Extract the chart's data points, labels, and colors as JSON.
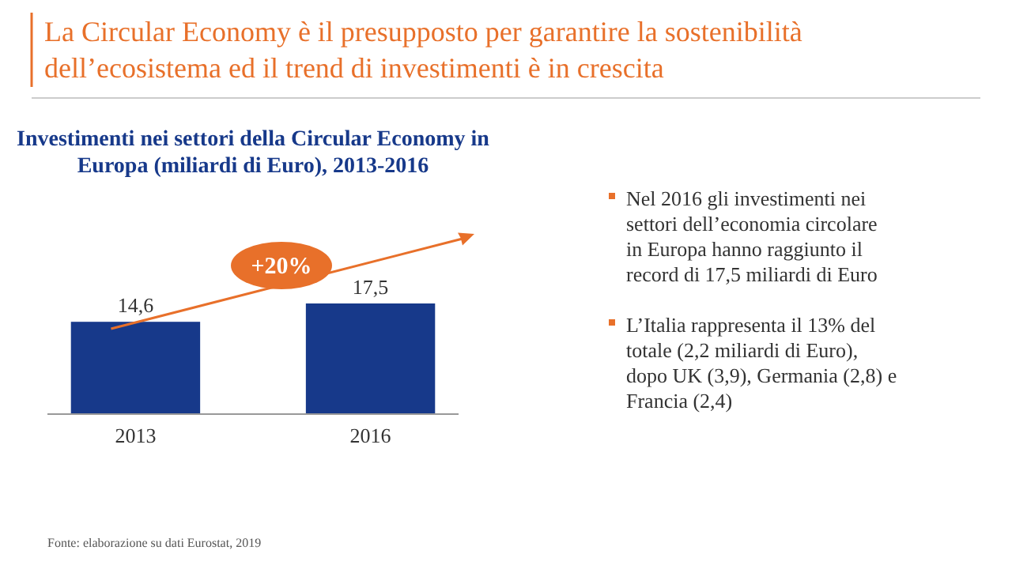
{
  "chart_data": {
    "type": "bar",
    "title": "La Circular Economy è il presupposto per garantire la sostenibilità dell’ecosistema ed il trend di investimenti è in crescita",
    "subtitle": "Investimenti nei settori della Circular Economy in Europa (miliardi di Euro), 2013-2016",
    "categories": [
      "2013",
      "2016"
    ],
    "values": [
      14.6,
      17.5
    ],
    "value_labels": [
      "14,6",
      "17,5"
    ],
    "color": "#17398a",
    "annotations": [
      "+20%",
      "Nel 2016 gli investimenti nei settori dell’economia circolare in Europa hanno raggiunto il record di 17,5 miliardi di Euro",
      "L’Italia rappresenta il 13% del totale (2,2 miliardi di Euro), dopo UK (3,9), Germania (2,8) e Francia (2,4)",
      "Fonte: elaborazione su dati Eurostat, 2019"
    ]
  }
}
